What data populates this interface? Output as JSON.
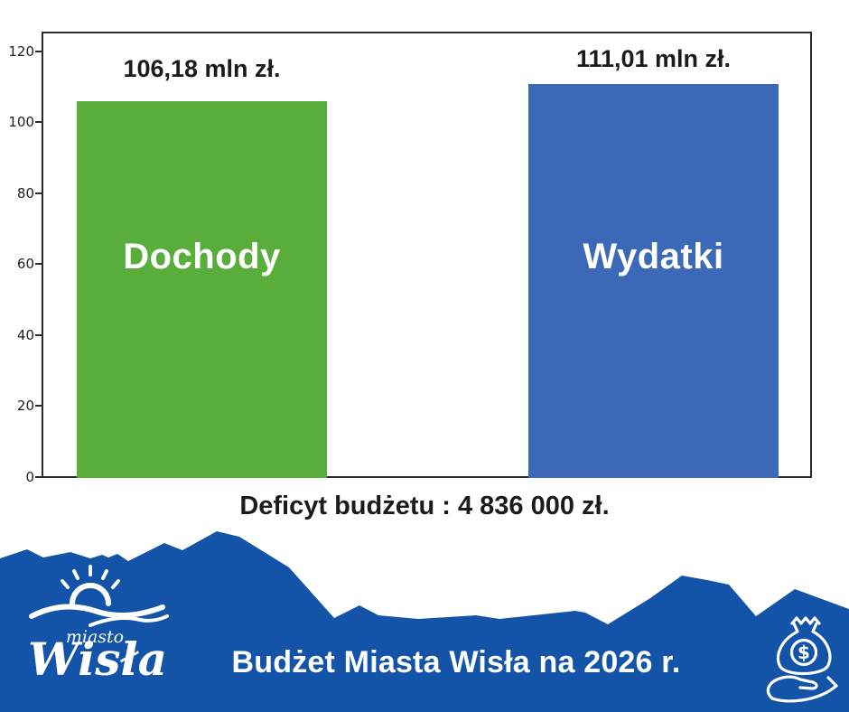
{
  "chart_data": {
    "type": "bar",
    "categories": [
      "Dochody",
      "Wydatki"
    ],
    "values": [
      106.18,
      111.01
    ],
    "value_labels": [
      "106,18 mln zł.",
      "111,01 mln zł."
    ],
    "bar_colors": [
      "#59ad3b",
      "#3c69b7"
    ],
    "title": "",
    "xlabel": "",
    "ylabel": "",
    "ylim": [
      0,
      120
    ],
    "yticks": [
      "0",
      "20",
      "40",
      "60",
      "80",
      "100",
      "120"
    ],
    "grid": false,
    "legend": false,
    "annotation": "Deficyt budżetu : 4 836 000 zł."
  },
  "footer": {
    "banner_color": "#1354a8",
    "logo_top": "miasto",
    "logo_name": "Wisła",
    "title": "Budżet Miasta Wisła na 2026 r.",
    "money_symbol": "$"
  }
}
